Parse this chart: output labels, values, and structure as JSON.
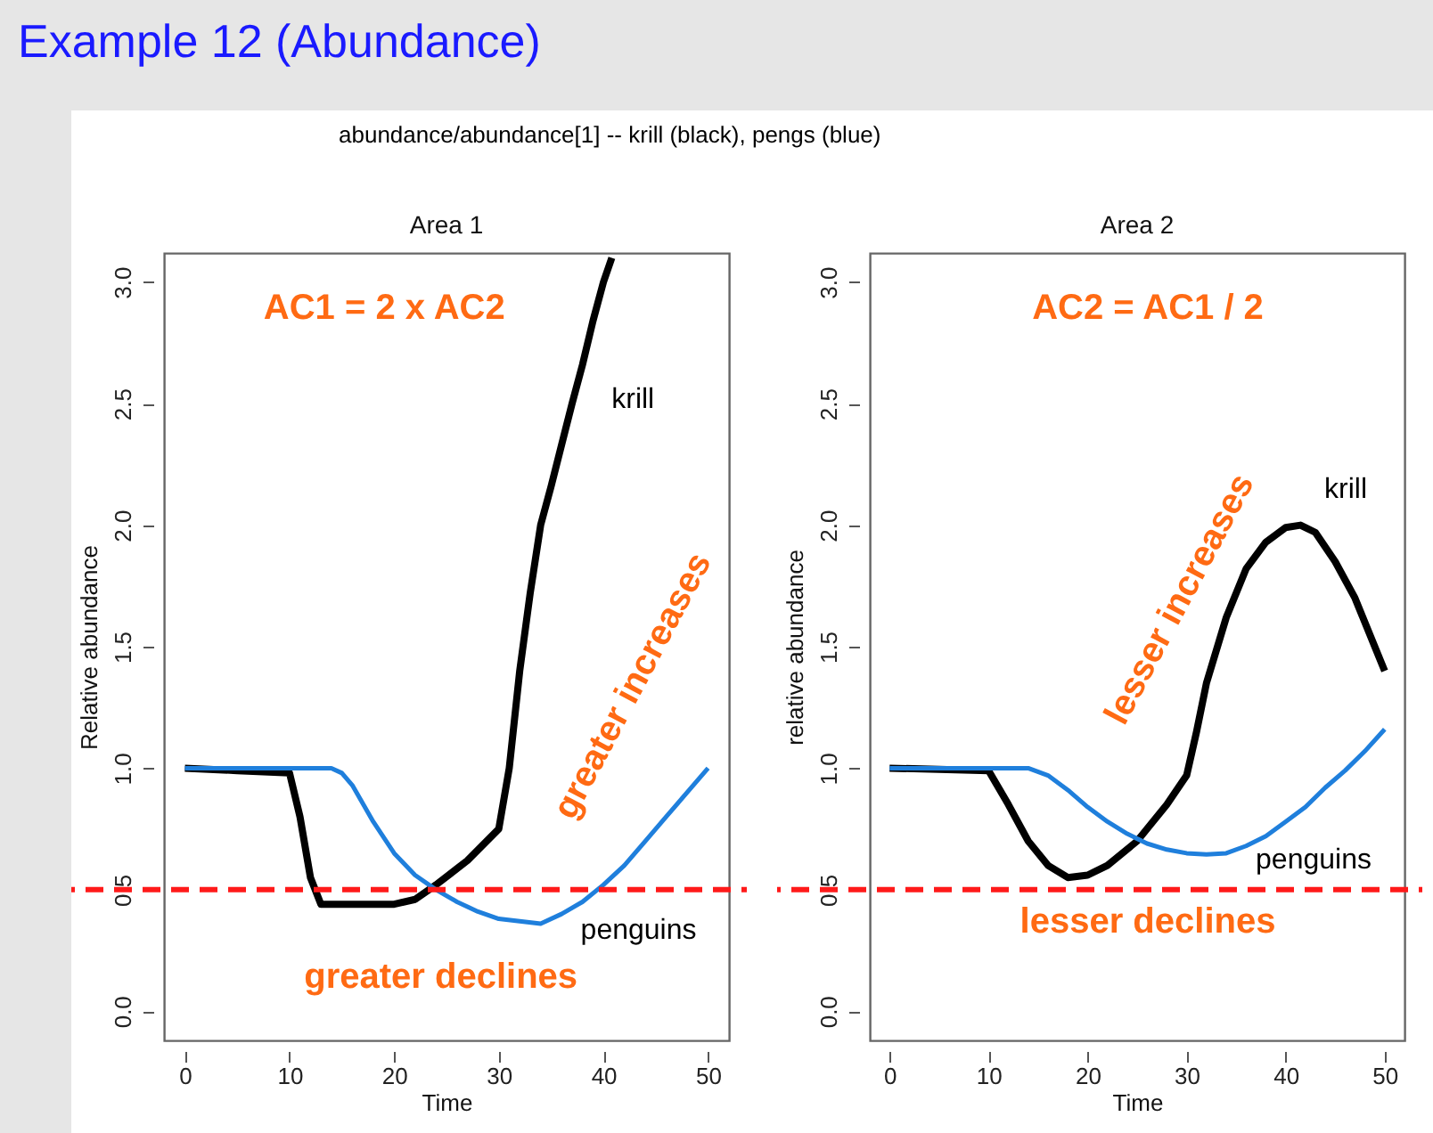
{
  "chart_data": [
    {
      "type": "line",
      "title": "Area 1",
      "xlabel": "Time",
      "ylabel": "Relative abundance",
      "annotations": [
        "Example 12 (Abundance)",
        "abundance/abundance[1] -- krill (black), pengs (blue)",
        "AC1 = 2 x AC2",
        "greater increases",
        "greater declines"
      ],
      "xlim": [
        -2,
        52
      ],
      "xticks": [
        0,
        10,
        20,
        30,
        40,
        50
      ],
      "ylim": [
        -0.12,
        3.12
      ],
      "yticks": [
        {
          "value": 0,
          "label": "0.0"
        },
        {
          "value": 0.5,
          "label": "0.5"
        },
        {
          "value": 1,
          "label": "1.0"
        },
        {
          "value": 1.5,
          "label": "1.5"
        },
        {
          "value": 2,
          "label": "2.0"
        },
        {
          "value": 2.5,
          "label": "2.5"
        },
        {
          "value": 3,
          "label": "3.0"
        }
      ],
      "ref_lines": [
        {
          "axis": "y",
          "value": 0.5,
          "color": "#ff1a1a",
          "line_style": "dashed"
        }
      ],
      "series": [
        {
          "name": "krill",
          "color": "#000000",
          "x": [
            0,
            5,
            10,
            11,
            12,
            13,
            15,
            20,
            22,
            24,
            27,
            30,
            31,
            32,
            33,
            34,
            35,
            36,
            37,
            38,
            39,
            40,
            40.8
          ],
          "values": [
            1.0,
            0.99,
            0.98,
            0.8,
            0.55,
            0.44,
            0.44,
            0.44,
            0.46,
            0.52,
            0.62,
            0.75,
            1.0,
            1.4,
            1.72,
            2.0,
            2.16,
            2.33,
            2.5,
            2.66,
            2.84,
            3.0,
            3.1
          ]
        },
        {
          "name": "penguins",
          "color": "#1f7fdc",
          "x": [
            0,
            14,
            15,
            16,
            18,
            20,
            22,
            24,
            26,
            28,
            30,
            32,
            34,
            36,
            38,
            40,
            42,
            44,
            46,
            48,
            50
          ],
          "values": [
            1.0,
            1.0,
            0.98,
            0.93,
            0.78,
            0.65,
            0.56,
            0.5,
            0.45,
            0.41,
            0.38,
            0.37,
            0.36,
            0.4,
            0.45,
            0.52,
            0.6,
            0.7,
            0.8,
            0.9,
            1.0
          ]
        }
      ]
    },
    {
      "type": "line",
      "title": "Area 2",
      "xlabel": "Time",
      "ylabel": "relative abundance",
      "annotations": [
        "AC2 = AC1 / 2",
        "lesser increases",
        "lesser declines"
      ],
      "xlim": [
        -2,
        52
      ],
      "xticks": [
        0,
        10,
        20,
        30,
        40,
        50
      ],
      "ylim": [
        -0.12,
        3.12
      ],
      "yticks": [
        {
          "value": 0,
          "label": "0.0"
        },
        {
          "value": 0.5,
          "label": "0.5"
        },
        {
          "value": 1,
          "label": "1.0"
        },
        {
          "value": 1.5,
          "label": "1.5"
        },
        {
          "value": 2,
          "label": "2.0"
        },
        {
          "value": 2.5,
          "label": "2.5"
        },
        {
          "value": 3,
          "label": "3.0"
        }
      ],
      "ref_lines": [
        {
          "axis": "y",
          "value": 0.5,
          "color": "#ff1a1a",
          "line_style": "dashed"
        }
      ],
      "series": [
        {
          "name": "krill",
          "color": "#000000",
          "x": [
            0,
            10,
            12,
            14,
            16,
            18,
            20,
            22,
            25,
            28,
            30,
            31,
            32,
            34,
            36,
            38,
            40,
            41.5,
            43,
            45,
            47,
            49,
            50
          ],
          "values": [
            1.0,
            0.99,
            0.85,
            0.7,
            0.6,
            0.55,
            0.56,
            0.6,
            0.7,
            0.85,
            0.97,
            1.15,
            1.35,
            1.62,
            1.82,
            1.93,
            1.99,
            2.0,
            1.97,
            1.85,
            1.7,
            1.5,
            1.4
          ]
        },
        {
          "name": "penguins",
          "color": "#1f7fdc",
          "x": [
            0,
            14,
            16,
            18,
            20,
            22,
            24,
            26,
            28,
            30,
            32,
            34,
            36,
            38,
            40,
            42,
            44,
            46,
            48,
            50
          ],
          "values": [
            1.0,
            1.0,
            0.97,
            0.91,
            0.84,
            0.78,
            0.73,
            0.69,
            0.665,
            0.65,
            0.645,
            0.65,
            0.68,
            0.72,
            0.78,
            0.84,
            0.92,
            0.99,
            1.07,
            1.16
          ]
        }
      ]
    }
  ]
}
